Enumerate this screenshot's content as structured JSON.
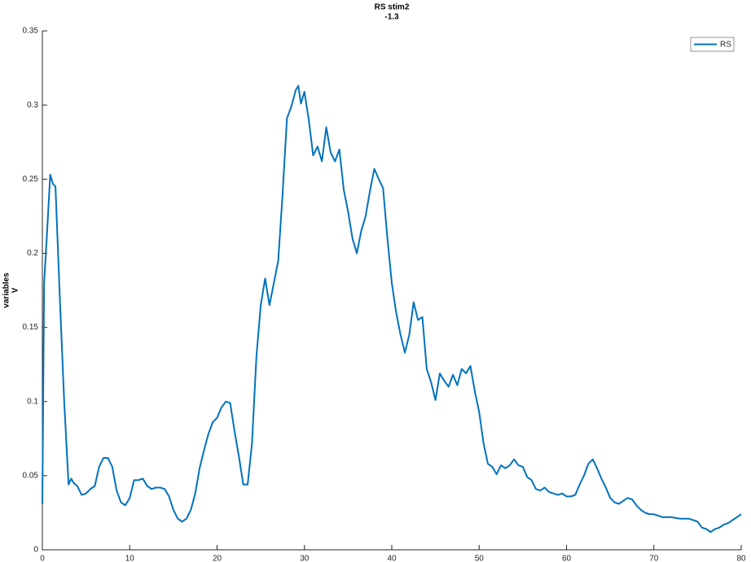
{
  "chart_data": {
    "type": "line",
    "title": "RS stim2",
    "subtitle": "-1.3",
    "ylabel": [
      "variables",
      "V"
    ],
    "legend": "northeast",
    "x": [
      0,
      0.2,
      0.5,
      0.9,
      1.2,
      1.5,
      2.0,
      2.5,
      3.0,
      3.3,
      3.6,
      4.0,
      4.5,
      5.0,
      5.5,
      6.0,
      6.5,
      7.0,
      7.5,
      8.0,
      8.5,
      9.0,
      9.5,
      10,
      10.5,
      11,
      11.5,
      12,
      12.5,
      13,
      13.5,
      14,
      14.5,
      15,
      15.5,
      16,
      16.5,
      17,
      17.5,
      18,
      18.5,
      19,
      19.5,
      20,
      20.5,
      21,
      21.5,
      22,
      22.5,
      23,
      23.5,
      24,
      24.5,
      25,
      25.5,
      26,
      26.5,
      27,
      27.5,
      28,
      28.5,
      29,
      29.3,
      29.6,
      30,
      30.5,
      31,
      31.5,
      32,
      32.5,
      33,
      33.5,
      34,
      34.5,
      35,
      35.5,
      36,
      36.5,
      37,
      37.5,
      38,
      38.5,
      39,
      39.5,
      40,
      40.5,
      41,
      41.5,
      42,
      42.5,
      43,
      43.5,
      44,
      44.5,
      45,
      45.5,
      46,
      46.5,
      47,
      47.5,
      48,
      48.5,
      49,
      49.5,
      50,
      50.5,
      51,
      51.5,
      52,
      52.5,
      53,
      53.5,
      54,
      54.5,
      55,
      55.5,
      56,
      56.5,
      57,
      57.5,
      58,
      58.5,
      59,
      59.5,
      60,
      60.5,
      61,
      61.5,
      62,
      62.5,
      63,
      63.5,
      64,
      64.5,
      65,
      65.5,
      66,
      66.5,
      67,
      67.5,
      68,
      68.5,
      69,
      69.5,
      70,
      71,
      72,
      73,
      74,
      75,
      75.5,
      76,
      76.5,
      77,
      77.5,
      78,
      78.5,
      79,
      79.5,
      80
    ],
    "series": [
      {
        "name": "RS",
        "color": "#0072bd",
        "values": [
          0.031,
          0.18,
          0.21,
          0.253,
          0.247,
          0.245,
          0.17,
          0.1,
          0.044,
          0.048,
          0.045,
          0.043,
          0.037,
          0.038,
          0.041,
          0.043,
          0.056,
          0.062,
          0.062,
          0.056,
          0.04,
          0.032,
          0.03,
          0.035,
          0.047,
          0.047,
          0.048,
          0.043,
          0.041,
          0.042,
          0.042,
          0.041,
          0.036,
          0.027,
          0.021,
          0.019,
          0.021,
          0.027,
          0.038,
          0.055,
          0.067,
          0.078,
          0.086,
          0.089,
          0.096,
          0.1,
          0.099,
          0.08,
          0.063,
          0.044,
          0.044,
          0.072,
          0.13,
          0.165,
          0.183,
          0.165,
          0.18,
          0.195,
          0.24,
          0.291,
          0.299,
          0.31,
          0.313,
          0.301,
          0.309,
          0.29,
          0.266,
          0.272,
          0.262,
          0.285,
          0.268,
          0.262,
          0.27,
          0.243,
          0.228,
          0.21,
          0.2,
          0.215,
          0.225,
          0.242,
          0.257,
          0.25,
          0.244,
          0.21,
          0.18,
          0.16,
          0.145,
          0.133,
          0.145,
          0.167,
          0.155,
          0.157,
          0.122,
          0.113,
          0.101,
          0.119,
          0.114,
          0.11,
          0.118,
          0.111,
          0.122,
          0.119,
          0.124,
          0.107,
          0.093,
          0.072,
          0.058,
          0.056,
          0.051,
          0.057,
          0.055,
          0.057,
          0.061,
          0.057,
          0.056,
          0.049,
          0.047,
          0.041,
          0.04,
          0.042,
          0.039,
          0.038,
          0.037,
          0.038,
          0.036,
          0.036,
          0.037,
          0.044,
          0.05,
          0.058,
          0.061,
          0.055,
          0.048,
          0.042,
          0.035,
          0.032,
          0.031,
          0.033,
          0.035,
          0.034,
          0.03,
          0.027,
          0.025,
          0.024,
          0.024,
          0.022,
          0.022,
          0.021,
          0.021,
          0.019,
          0.015,
          0.014,
          0.012,
          0.014,
          0.015,
          0.017,
          0.018,
          0.02,
          0.022,
          0.024
        ]
      }
    ],
    "xlim": [
      0,
      80
    ],
    "xticks": [
      0,
      10,
      20,
      30,
      40,
      50,
      60,
      70,
      80
    ],
    "ylim": [
      0,
      0.35
    ],
    "yticks": [
      0,
      0.05,
      0.1,
      0.15,
      0.2,
      0.25,
      0.3,
      0.35
    ]
  }
}
